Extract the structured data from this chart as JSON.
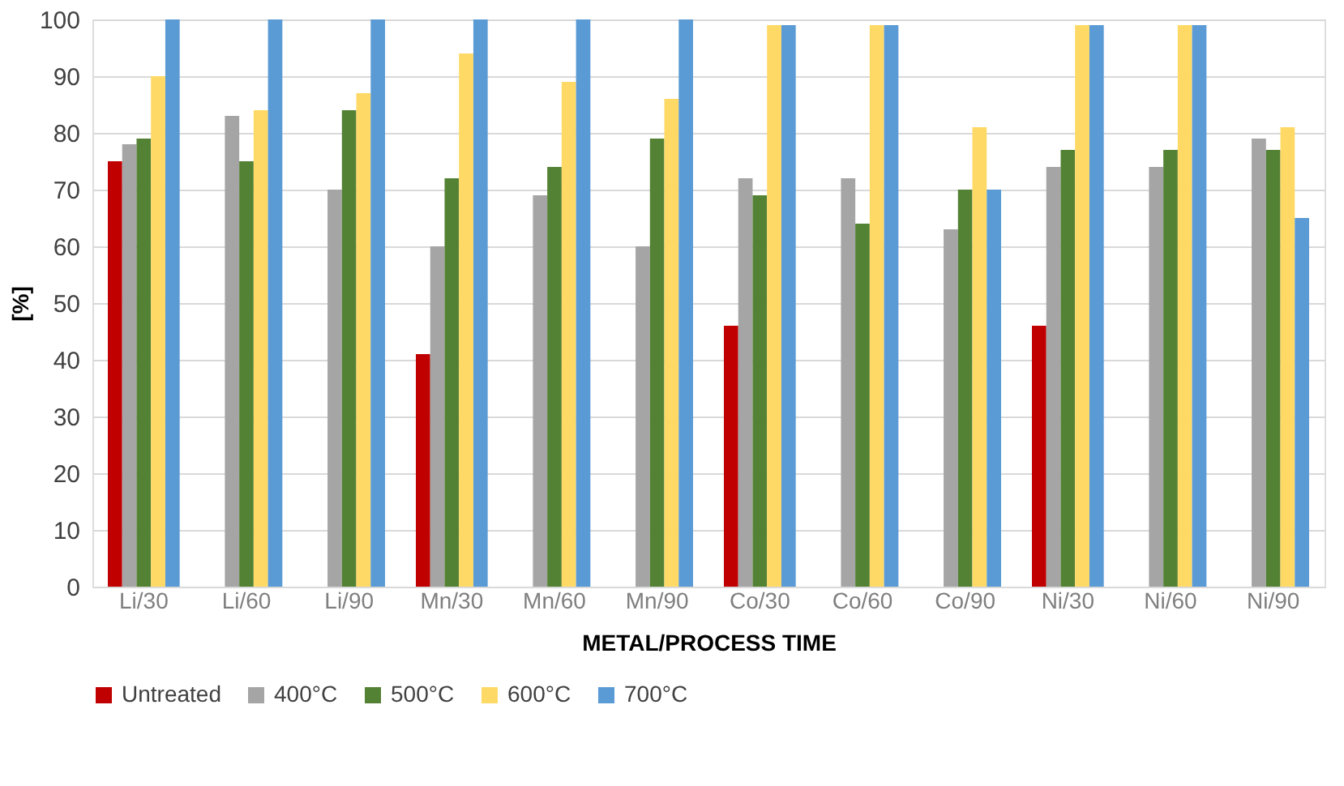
{
  "chart_data": {
    "type": "bar",
    "xlabel": "METAL/PROCESS TIME",
    "ylabel": "[%]",
    "categories": [
      "Li/30",
      "Li/60",
      "Li/90",
      "Mn/30",
      "Mn/60",
      "Mn/90",
      "Co/30",
      "Co/60",
      "Co/90",
      "Ni/30",
      "Ni/60",
      "Ni/90"
    ],
    "series": [
      {
        "name": "Untreated",
        "color": "#c00000",
        "values": [
          75,
          null,
          null,
          41,
          null,
          null,
          46,
          null,
          null,
          46,
          null,
          null
        ]
      },
      {
        "name": "400°C",
        "color": "#a5a5a5",
        "values": [
          78,
          83,
          70,
          60,
          69,
          60,
          72,
          72,
          63,
          74,
          74,
          79
        ]
      },
      {
        "name": "500°C",
        "color": "#548235",
        "values": [
          79,
          75,
          84,
          72,
          74,
          79,
          69,
          64,
          70,
          77,
          77,
          77
        ]
      },
      {
        "name": "600°C",
        "color": "#ffd966",
        "values": [
          90,
          84,
          87,
          94,
          89,
          86,
          99,
          99,
          81,
          99,
          99,
          81
        ]
      },
      {
        "name": "700°C",
        "color": "#5b9bd5",
        "values": [
          100,
          100,
          100,
          100,
          100,
          100,
          99,
          99,
          70,
          99,
          99,
          65
        ]
      }
    ],
    "ylim": [
      0,
      100
    ],
    "yticks": [
      0,
      10,
      20,
      30,
      40,
      50,
      60,
      70,
      80,
      90,
      100
    ],
    "grid": "y",
    "legend": "bottom"
  }
}
